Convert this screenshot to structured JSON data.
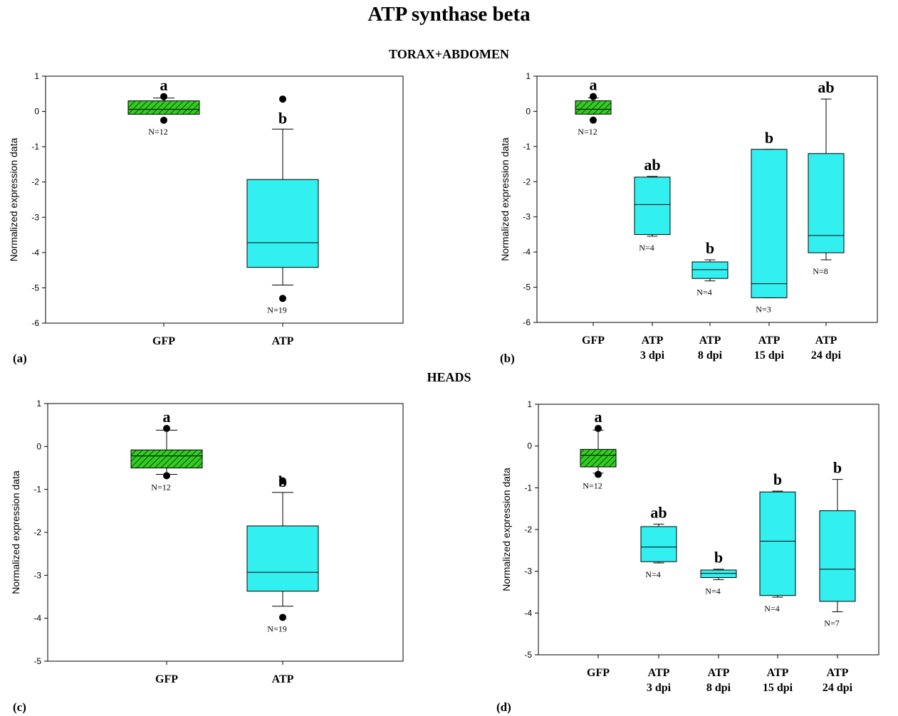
{
  "main_title": "ATP synthase beta",
  "sections": {
    "top": "TORAX+ABDOMEN",
    "bottom": "HEADS"
  },
  "colors": {
    "gfp_fill": "#33cc22",
    "atp_fill": "#33f0f0",
    "axis": "#000000"
  },
  "chart_data": [
    {
      "panel": "(a)",
      "type": "box",
      "ylabel": "Normalized expression data",
      "ylim": [
        -6,
        1
      ],
      "yticks": [
        1,
        0,
        -1,
        -2,
        -3,
        -4,
        -5,
        -6
      ],
      "boxes": [
        {
          "label": [
            "GFP"
          ],
          "color": "green",
          "hatched": true,
          "min": -0.08,
          "q1": -0.08,
          "median": 0.06,
          "q3": 0.3,
          "max": 0.38,
          "outliers": [
            0.42,
            -0.25
          ],
          "letter": "a",
          "n": "N=12"
        },
        {
          "label": [
            "ATP"
          ],
          "color": "cyan",
          "hatched": false,
          "min": -4.92,
          "q1": -4.42,
          "median": -3.72,
          "q3": -1.93,
          "max": -0.5,
          "outliers": [
            0.35,
            -5.3
          ],
          "letter": "b",
          "n": "N=19"
        }
      ]
    },
    {
      "panel": "(b)",
      "type": "box",
      "ylabel": "Normalized expression data",
      "ylim": [
        -6,
        1
      ],
      "yticks": [
        1,
        0,
        -1,
        -2,
        -3,
        -4,
        -5,
        -6
      ],
      "boxes": [
        {
          "label": [
            "GFP"
          ],
          "color": "green",
          "hatched": true,
          "min": -0.08,
          "q1": -0.08,
          "median": 0.06,
          "q3": 0.3,
          "max": 0.38,
          "outliers": [
            0.42,
            -0.25
          ],
          "letter": "a",
          "n": "N=12"
        },
        {
          "label": [
            "ATP",
            "3 dpi"
          ],
          "color": "cyan",
          "hatched": false,
          "min": -3.55,
          "q1": -3.5,
          "median": -2.65,
          "q3": -1.87,
          "max": -1.85,
          "outliers": [],
          "letter": "ab",
          "n": "N=4"
        },
        {
          "label": [
            "ATP",
            "8 dpi"
          ],
          "color": "cyan",
          "hatched": false,
          "min": -4.82,
          "q1": -4.75,
          "median": -4.5,
          "q3": -4.28,
          "max": -4.22,
          "outliers": [],
          "letter": "b",
          "n": "N=4"
        },
        {
          "label": [
            "ATP",
            "15 dpi"
          ],
          "color": "cyan",
          "hatched": false,
          "min": -5.3,
          "q1": -5.3,
          "median": -4.9,
          "q3": -1.08,
          "max": -1.08,
          "outliers": [],
          "letter": "b",
          "n": "N=3"
        },
        {
          "label": [
            "ATP",
            "24 dpi"
          ],
          "color": "cyan",
          "hatched": false,
          "min": -4.22,
          "q1": -4.02,
          "median": -3.53,
          "q3": -1.2,
          "max": 0.35,
          "outliers": [],
          "letter": "ab",
          "n": "N=8"
        }
      ]
    },
    {
      "panel": "(c)",
      "type": "box",
      "ylabel": "Normalized expression data",
      "ylim": [
        -5,
        1
      ],
      "yticks": [
        1,
        0,
        -1,
        -2,
        -3,
        -4,
        -5
      ],
      "boxes": [
        {
          "label": [
            "GFP"
          ],
          "color": "green",
          "hatched": true,
          "min": -0.65,
          "q1": -0.5,
          "median": -0.22,
          "q3": -0.08,
          "max": 0.38,
          "outliers": [
            0.42,
            -0.68
          ],
          "letter": "a",
          "n": "N=12"
        },
        {
          "label": [
            "ATP"
          ],
          "color": "cyan",
          "hatched": false,
          "min": -3.72,
          "q1": -3.37,
          "median": -2.93,
          "q3": -1.85,
          "max": -1.07,
          "outliers": [
            -0.8,
            -3.98
          ],
          "letter": "b",
          "n": "N=19"
        }
      ]
    },
    {
      "panel": "(d)",
      "type": "box",
      "ylabel": "Normalized expression data",
      "ylim": [
        -5,
        1
      ],
      "yticks": [
        1,
        0,
        -1,
        -2,
        -3,
        -4,
        -5
      ],
      "boxes": [
        {
          "label": [
            "GFP"
          ],
          "color": "green",
          "hatched": true,
          "min": -0.65,
          "q1": -0.5,
          "median": -0.22,
          "q3": -0.08,
          "max": 0.38,
          "outliers": [
            0.42,
            -0.68
          ],
          "letter": "a",
          "n": "N=12"
        },
        {
          "label": [
            "ATP",
            "3 dpi"
          ],
          "color": "cyan",
          "hatched": false,
          "min": -2.8,
          "q1": -2.77,
          "median": -2.42,
          "q3": -1.93,
          "max": -1.87,
          "outliers": [],
          "letter": "ab",
          "n": "N=4"
        },
        {
          "label": [
            "ATP",
            "8 dpi"
          ],
          "color": "cyan",
          "hatched": false,
          "min": -3.2,
          "q1": -3.15,
          "median": -3.05,
          "q3": -2.97,
          "max": -2.95,
          "outliers": [],
          "letter": "b",
          "n": "N=4"
        },
        {
          "label": [
            "ATP",
            "15 dpi"
          ],
          "color": "cyan",
          "hatched": false,
          "min": -3.62,
          "q1": -3.58,
          "median": -2.28,
          "q3": -1.1,
          "max": -1.08,
          "outliers": [],
          "letter": "b",
          "n": "N=4"
        },
        {
          "label": [
            "ATP",
            "24 dpi"
          ],
          "color": "cyan",
          "hatched": false,
          "min": -3.97,
          "q1": -3.72,
          "median": -2.95,
          "q3": -1.55,
          "max": -0.8,
          "outliers": [],
          "letter": "b",
          "n": "N=7"
        }
      ]
    }
  ]
}
